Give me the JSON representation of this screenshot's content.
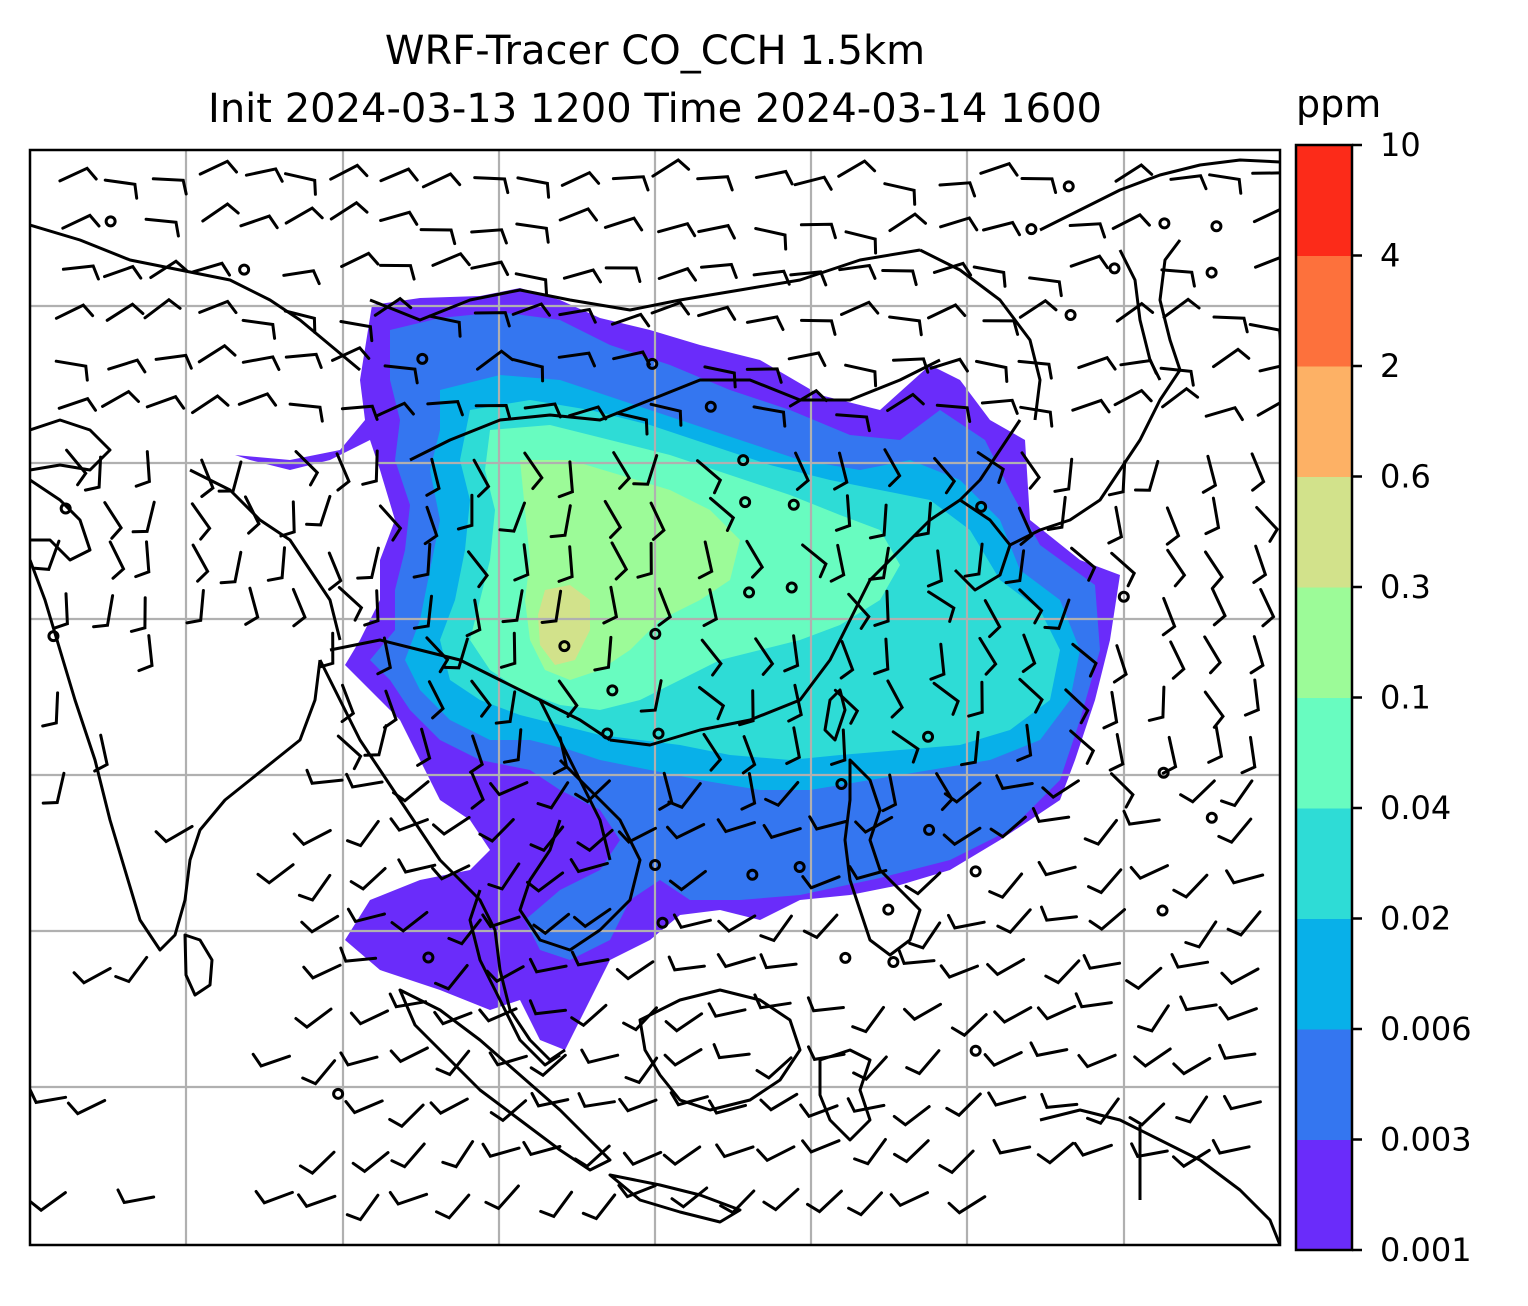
{
  "title": {
    "line1": "WRF-Tracer CO_CCH 1.5km",
    "line2": "Init 2024-03-13 1200 Time 2024-03-14 1600"
  },
  "colorbar": {
    "unit": "ppm",
    "levels": [
      "0.001",
      "0.003",
      "0.006",
      "0.02",
      "0.04",
      "0.1",
      "0.3",
      "0.6",
      "2",
      "4",
      "10"
    ],
    "colors": [
      "#6a2cfa",
      "#3476f0",
      "#08b0e9",
      "#2edcd6",
      "#68fcc0",
      "#9cfb98",
      "#d2e28b",
      "#fdb165",
      "#fd713c",
      "#fc2b19"
    ]
  },
  "map": {
    "gridlines": true,
    "land_outline_color": "#000000",
    "background_color": "#ffffff"
  }
}
